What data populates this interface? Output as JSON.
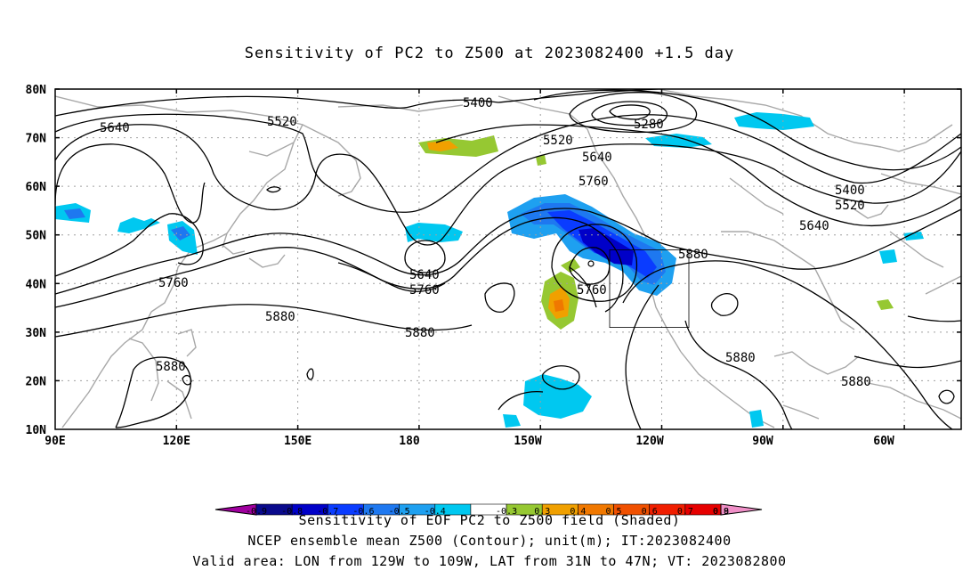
{
  "title": "Sensitivity of PC2 to Z500 at 2023082400 +1.5 day",
  "map": {
    "lat_labels": [
      "80N",
      "70N",
      "60N",
      "50N",
      "40N",
      "30N",
      "20N",
      "10N"
    ],
    "lon_labels": [
      "90E",
      "120E",
      "150E",
      "180",
      "150W",
      "120W",
      "90W",
      "60W"
    ],
    "contour_labels": [
      "5400",
      "5520",
      "5640",
      "5280",
      "5520",
      "5640",
      "5760",
      "5400",
      "5520",
      "5640",
      "5880",
      "5640",
      "5760",
      "5760",
      "5760",
      "5880",
      "5880",
      "5880",
      "5880",
      "5880"
    ],
    "valid_box": {
      "lon_west": -129,
      "lon_east": -109,
      "lat_south": 31,
      "lat_north": 47
    }
  },
  "colorbar": {
    "levels": [
      "-0.9",
      "-0.8",
      "-0.7",
      "-0.6",
      "-0.5",
      "-0.4",
      "-0.3",
      "0.3",
      "0.4",
      "0.5",
      "0.6",
      "0.7",
      "0.8",
      "0.9"
    ],
    "colors": [
      "#a0009f",
      "#0a0a8c",
      "#0000c8",
      "#0a3cff",
      "#1e78f0",
      "#1ea0f0",
      "#00c8f0",
      "#ffffff",
      "#96c832",
      "#f0a000",
      "#f07800",
      "#f05000",
      "#f01e00",
      "#e60000",
      "#f090c8"
    ]
  },
  "captions": {
    "line1": "Sensitivity of EOF PC2 to Z500 field (Shaded)",
    "line2": "NCEP ensemble mean Z500 (Contour); unit(m); IT:2023082400",
    "line3": "Valid area: LON from 129W to 109W, LAT from 31N to 47N; VT: 2023082800"
  }
}
